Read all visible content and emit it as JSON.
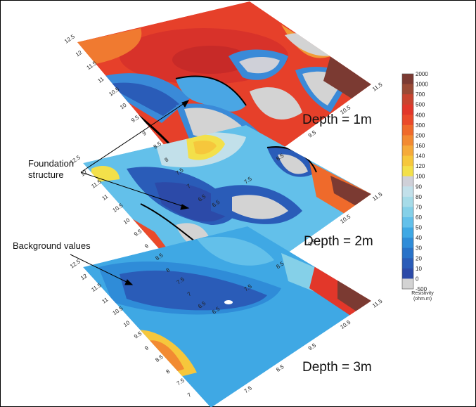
{
  "depth_labels": [
    "Depth = 1m",
    "Depth = 2m",
    "Depth = 3m"
  ],
  "annotations": {
    "foundation_line1": "Foundation",
    "foundation_line2": "structure",
    "background": "Background values"
  },
  "legend": {
    "title_line1": "Resistivity",
    "title_line2": "(ohm.m)",
    "labels": [
      "2000",
      "1000",
      "700",
      "500",
      "400",
      "300",
      "200",
      "160",
      "140",
      "120",
      "100",
      "90",
      "80",
      "70",
      "60",
      "50",
      "40",
      "30",
      "20",
      "10",
      "0",
      "-500"
    ],
    "colors": [
      "#7b3a32",
      "#9a4a35",
      "#c8442f",
      "#e2372a",
      "#ea4a2a",
      "#ef6a2b",
      "#f28a32",
      "#f5aa3a",
      "#f6c73c",
      "#f3e04a",
      "#cfd0d8",
      "#c2e0ea",
      "#a6dbe8",
      "#85d0e8",
      "#63c0ea",
      "#3fa8e4",
      "#2f8cd8",
      "#2872c8",
      "#2a5cb8",
      "#2c4aa8",
      "#d3d3d3"
    ]
  },
  "axis_ticks": {
    "left": [
      "12.5",
      "12",
      "11.5",
      "11",
      "10.5",
      "10",
      "9.5",
      "9",
      "8.5",
      "8",
      "7.5",
      "7",
      "6.5"
    ],
    "front": [
      "6.5",
      "7.5",
      "8.5",
      "9.5",
      "10.5",
      "11.5"
    ]
  }
}
